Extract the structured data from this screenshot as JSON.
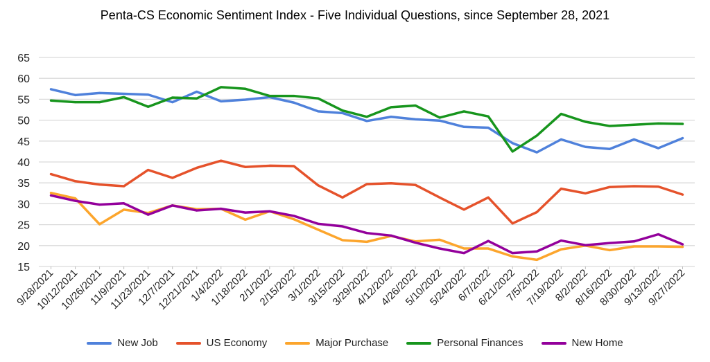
{
  "chart_data": {
    "type": "line",
    "title": "Penta-CS Economic Sentiment Index - Five Individual Questions, since September 28, 2021",
    "xlabel": "",
    "ylabel": "",
    "ylim": [
      15,
      65
    ],
    "yticks": [
      15,
      20,
      25,
      30,
      35,
      40,
      45,
      50,
      55,
      60,
      65
    ],
    "grid": true,
    "legend_position": "bottom",
    "categories": [
      "9/28/2021",
      "10/12/2021",
      "10/26/2021",
      "11/9/2021",
      "11/23/2021",
      "12/7/2021",
      "12/21/2021",
      "1/4/2022",
      "1/18/2022",
      "2/1/2022",
      "2/15/2022",
      "3/1/2022",
      "3/15/2022",
      "3/29/2022",
      "4/12/2022",
      "4/26/2022",
      "5/10/2022",
      "5/24/2022",
      "6/7/2022",
      "6/21/2022",
      "7/5/2022",
      "7/19/2022",
      "8/2/2022",
      "8/16/2022",
      "8/30/2022",
      "9/13/2022",
      "9/27/2022"
    ],
    "series": [
      {
        "name": "New Job",
        "color": "#4f81db",
        "values": [
          57.4,
          56.0,
          56.5,
          56.3,
          56.1,
          54.3,
          56.8,
          54.5,
          54.9,
          55.5,
          54.2,
          52.1,
          51.7,
          49.8,
          50.8,
          50.2,
          49.9,
          48.4,
          48.2,
          44.5,
          42.3,
          45.4,
          43.6,
          43.1,
          45.4,
          43.3,
          45.7
        ]
      },
      {
        "name": "US Economy",
        "color": "#e5522b",
        "values": [
          37.1,
          35.4,
          34.6,
          34.2,
          38.1,
          36.2,
          38.6,
          40.3,
          38.8,
          39.1,
          39.0,
          34.4,
          31.5,
          34.7,
          34.9,
          34.5,
          31.5,
          28.6,
          31.5,
          25.3,
          28.0,
          33.6,
          32.5,
          34.0,
          34.2,
          34.1,
          32.2
        ]
      },
      {
        "name": "Major Purchase",
        "color": "#fca52c",
        "values": [
          32.6,
          31.3,
          25.1,
          28.6,
          27.8,
          29.6,
          28.7,
          28.8,
          26.2,
          28.2,
          26.3,
          23.8,
          21.3,
          20.9,
          22.3,
          21.0,
          21.4,
          19.3,
          19.3,
          17.4,
          16.6,
          19.1,
          20.0,
          18.9,
          19.8,
          19.8,
          19.7
        ]
      },
      {
        "name": "Personal Finances",
        "color": "#17951d",
        "values": [
          54.7,
          54.3,
          54.3,
          55.5,
          53.2,
          55.4,
          55.2,
          57.9,
          57.5,
          55.8,
          55.8,
          55.2,
          52.3,
          50.8,
          53.1,
          53.5,
          50.6,
          52.1,
          50.9,
          42.5,
          46.3,
          51.5,
          49.6,
          48.6,
          48.9,
          49.2,
          49.1
        ]
      },
      {
        "name": "New Home",
        "color": "#93009b",
        "values": [
          32.0,
          30.7,
          29.8,
          30.1,
          27.4,
          29.6,
          28.4,
          28.8,
          27.9,
          28.2,
          27.1,
          25.2,
          24.6,
          23.0,
          22.4,
          20.7,
          19.3,
          18.2,
          21.1,
          18.2,
          18.6,
          21.2,
          20.1,
          20.6,
          21.0,
          22.7,
          20.3
        ]
      }
    ]
  }
}
